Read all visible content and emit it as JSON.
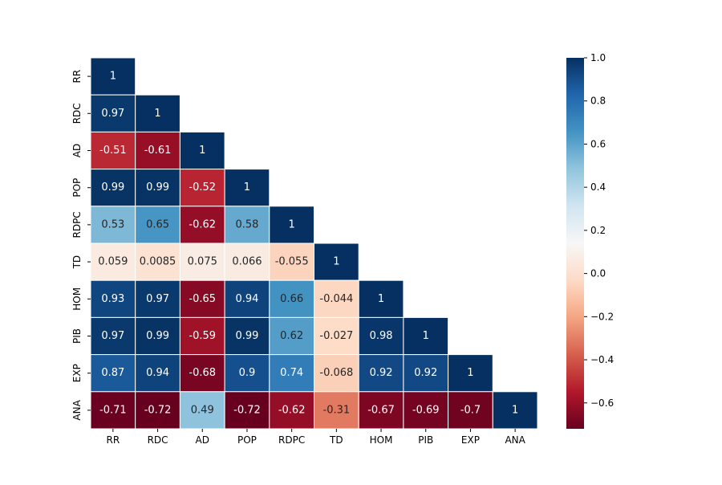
{
  "chart_data": {
    "type": "heatmap",
    "variables": [
      "RR",
      "RDC",
      "AD",
      "POP",
      "RDPC",
      "TD",
      "HOM",
      "PIB",
      "EXP",
      "ANA"
    ],
    "matrix": [
      [
        1
      ],
      [
        0.97,
        1
      ],
      [
        -0.51,
        -0.61,
        1
      ],
      [
        0.99,
        0.99,
        -0.52,
        1
      ],
      [
        0.53,
        0.65,
        -0.62,
        0.58,
        1
      ],
      [
        0.059,
        0.0085,
        0.075,
        0.066,
        -0.055,
        1
      ],
      [
        0.93,
        0.97,
        -0.65,
        0.94,
        0.66,
        -0.044,
        1
      ],
      [
        0.97,
        0.99,
        -0.59,
        0.99,
        0.62,
        -0.027,
        0.98,
        1
      ],
      [
        0.87,
        0.94,
        -0.68,
        0.9,
        0.74,
        -0.068,
        0.92,
        0.92,
        1
      ],
      [
        -0.71,
        -0.72,
        0.49,
        -0.72,
        -0.62,
        -0.31,
        -0.67,
        -0.69,
        -0.7,
        1
      ]
    ],
    "cell_labels": [
      [
        "1"
      ],
      [
        "0.97",
        "1"
      ],
      [
        "-0.51",
        "-0.61",
        "1"
      ],
      [
        "0.99",
        "0.99",
        "-0.52",
        "1"
      ],
      [
        "0.53",
        "0.65",
        "-0.62",
        "0.58",
        "1"
      ],
      [
        "0.059",
        "0.0085",
        "0.075",
        "0.066",
        "-0.055",
        "1"
      ],
      [
        "0.93",
        "0.97",
        "-0.65",
        "0.94",
        "0.66",
        "-0.044",
        "1"
      ],
      [
        "0.97",
        "0.99",
        "-0.59",
        "0.99",
        "0.62",
        "-0.027",
        "0.98",
        "1"
      ],
      [
        "0.87",
        "0.94",
        "-0.68",
        "0.9",
        "0.74",
        "-0.068",
        "0.92",
        "0.92",
        "1"
      ],
      [
        "-0.71",
        "-0.72",
        "0.49",
        "-0.72",
        "-0.62",
        "-0.31",
        "-0.67",
        "-0.69",
        "-0.7",
        "1"
      ]
    ],
    "mask": "upper-triangle",
    "colormap": "RdBu",
    "color_range": [
      -0.72,
      1.0
    ],
    "colorbar_ticks": [
      1.0,
      0.8,
      0.6,
      0.4,
      0.2,
      0.0,
      -0.2,
      -0.4,
      -0.6
    ],
    "colorbar_tick_labels": [
      "1.0",
      "0.8",
      "0.6",
      "0.4",
      "0.2",
      "0.0",
      "−0.2",
      "−0.4",
      "−0.6"
    ],
    "colorbar_placement": "right",
    "cell_border_color": "#ffffff",
    "title": "",
    "xlabel": "",
    "ylabel": ""
  }
}
